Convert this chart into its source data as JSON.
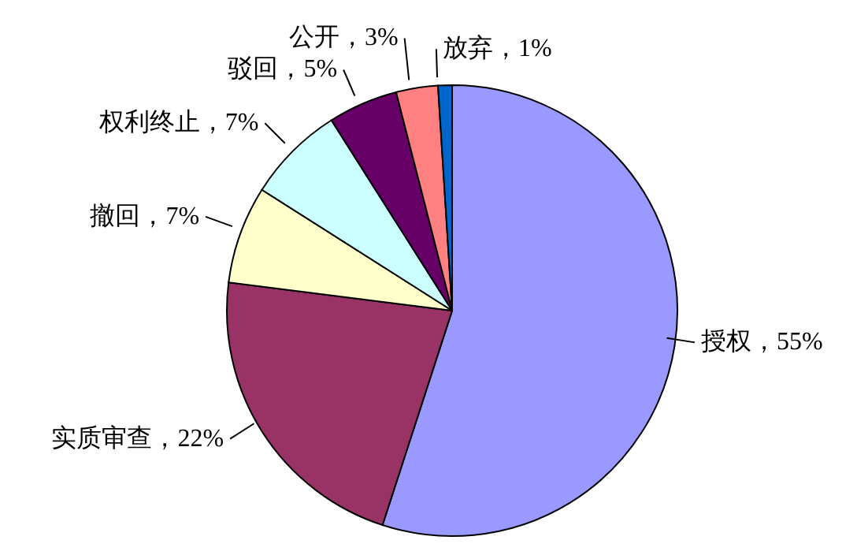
{
  "chart_data": {
    "type": "pie",
    "categories": [
      "授权",
      "实质审查",
      "撤回",
      "权利终止",
      "驳回",
      "公开",
      "放弃"
    ],
    "values": [
      55,
      22,
      7,
      7,
      5,
      3,
      1
    ],
    "value_labels": [
      "55%",
      "22%",
      "7%",
      "7%",
      "5%",
      "3%",
      "1%"
    ],
    "colors": [
      "#9999ff",
      "#993366",
      "#ffffcc",
      "#ccffff",
      "#660066",
      "#ff8080",
      "#0066cc"
    ],
    "legend": false
  }
}
